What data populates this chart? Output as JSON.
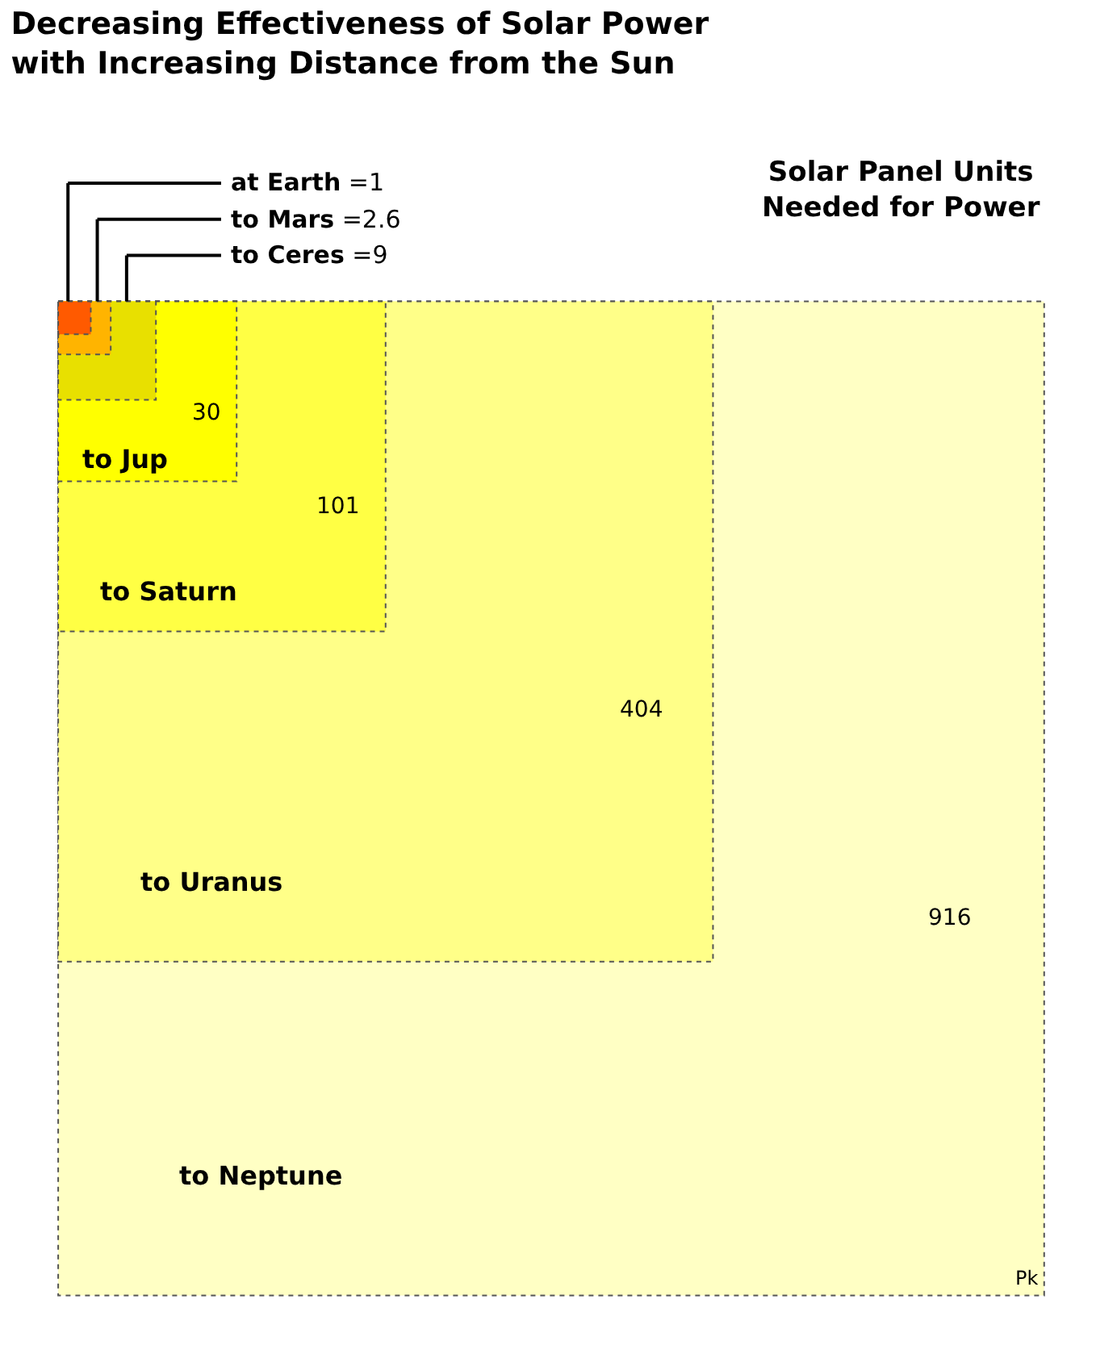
{
  "chart_data": {
    "type": "other",
    "title": "Decreasing Effectiveness of Solar Power with Increasing Distance from the Sun",
    "subtitle": "Solar Panel Units Needed for Power",
    "categories": [
      "at Earth",
      "to Mars",
      "to Ceres",
      "to Jup",
      "to Saturn",
      "to Uranus",
      "to Neptune"
    ],
    "values": [
      1,
      2.6,
      9,
      30,
      101,
      404,
      916
    ],
    "value_labels": [
      "=1",
      "=2.6",
      "=9",
      "30",
      "101",
      "404",
      "916"
    ],
    "colors": [
      "#ff5a00",
      "#ffb400",
      "#e8e000",
      "#ffff00",
      "#ffff44",
      "#ffff88",
      "#ffffc4"
    ],
    "annotations": [
      "Pk"
    ]
  }
}
